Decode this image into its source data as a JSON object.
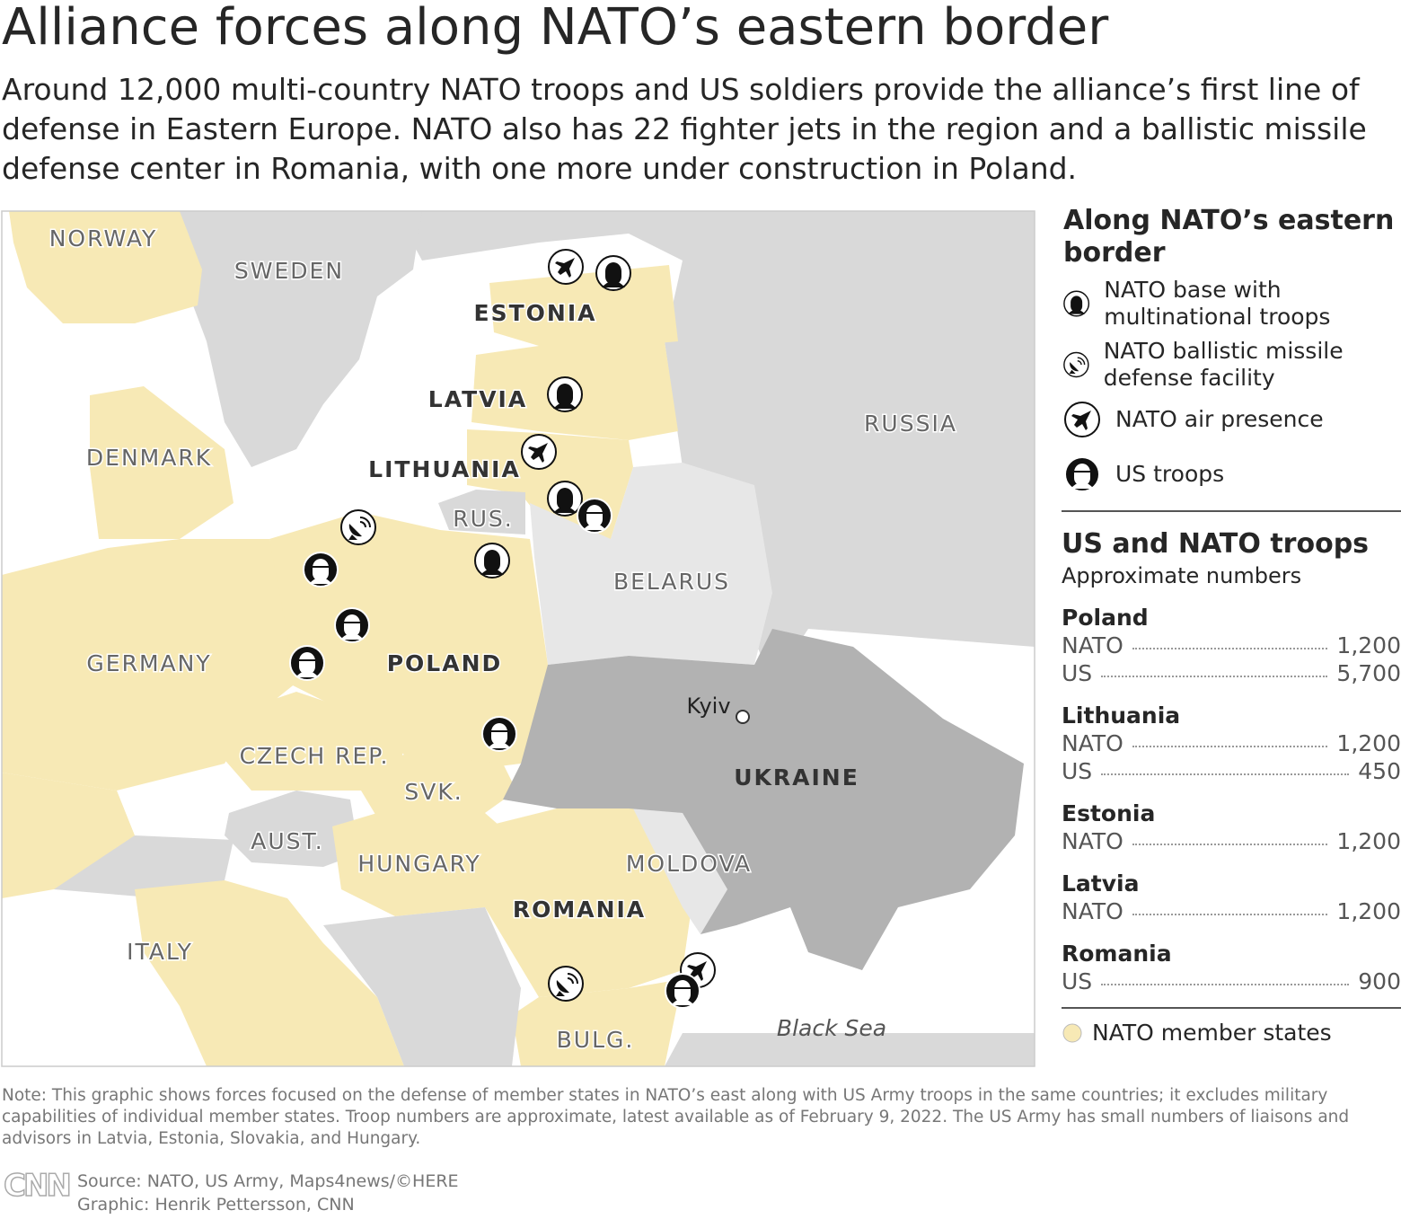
{
  "title": "Alliance forces along NATO’s eastern border",
  "subtitle": "Around 12,000 multi-country NATO troops and US soldiers provide the alliance’s first line of defense in Eastern Europe. NATO also has 22 fighter jets in the region and a ballistic missile defense center in Romania, with one more under construction in Poland.",
  "map": {
    "labels": [
      "NORWAY",
      "SWEDEN",
      "ESTONIA",
      "LATVIA",
      "LITHUANIA",
      "DENMARK",
      "RUSSIA",
      "RUS.",
      "BELARUS",
      "GERMANY",
      "POLAND",
      "CZECH REP.",
      "SVK.",
      "UKRAINE",
      "AUST.",
      "HUNGARY",
      "MOLDOVA",
      "ROMANIA",
      "ITALY",
      "BULG."
    ],
    "city": "Kyiv",
    "sea": "Black Sea"
  },
  "legend": {
    "title": "Along NATO’s eastern border",
    "items": [
      "NATO base with multinational troops",
      "NATO ballistic missile defense facility",
      "NATO air presence",
      "US troops"
    ],
    "member": "NATO member states"
  },
  "troops": {
    "title": "US and NATO troops",
    "subtitle": "Approximate numbers",
    "countries": [
      {
        "name": "Poland",
        "rows": [
          {
            "force": "NATO",
            "value": "1,200"
          },
          {
            "force": "US",
            "value": "5,700"
          }
        ]
      },
      {
        "name": "Lithuania",
        "rows": [
          {
            "force": "NATO",
            "value": "1,200"
          },
          {
            "force": "US",
            "value": "450"
          }
        ]
      },
      {
        "name": "Estonia",
        "rows": [
          {
            "force": "NATO",
            "value": "1,200"
          }
        ]
      },
      {
        "name": "Latvia",
        "rows": [
          {
            "force": "NATO",
            "value": "1,200"
          }
        ]
      },
      {
        "name": "Romania",
        "rows": [
          {
            "force": "US",
            "value": "900"
          }
        ]
      }
    ]
  },
  "note": "Note: This graphic shows forces focused on the defense of member states in NATO’s east along with US Army troops in the same countries; it excludes military capabilities of individual member states. Troop numbers are approximate, latest available as of February 9, 2022. The US Army has small numbers of liaisons and advisors in Latvia, Estonia, Slovakia, and Hungary.",
  "logo": "CNN",
  "source": "Source: NATO, US Army, Maps4news/©HERE",
  "credit": "Graphic: Henrik Pettersson, CNN"
}
